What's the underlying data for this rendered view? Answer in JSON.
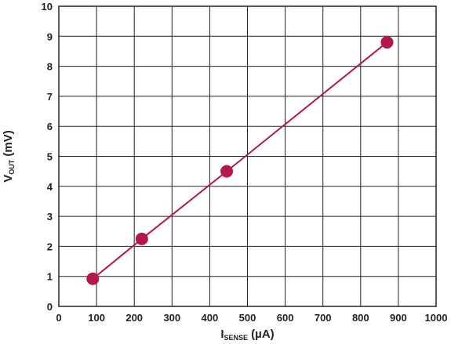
{
  "chart_data": {
    "type": "scatter",
    "x": [
      90,
      220,
      445,
      870
    ],
    "y": [
      0.92,
      2.25,
      4.5,
      8.8
    ],
    "xlim": [
      0,
      1000
    ],
    "ylim": [
      0,
      10
    ],
    "x_ticks": [
      "0",
      "100",
      "200",
      "300",
      "400",
      "500",
      "600",
      "700",
      "800",
      "900",
      "1000"
    ],
    "y_ticks": [
      "0",
      "1",
      "2",
      "3",
      "4",
      "5",
      "6",
      "7",
      "8",
      "9",
      "10"
    ],
    "xlabel": {
      "main": "I",
      "sub": "SENSE",
      "unit": " (µA)"
    },
    "ylabel": {
      "main": "V",
      "sub": "OUT",
      "unit": " (mV)"
    },
    "grid": true,
    "marker": "circle",
    "line": "connected",
    "colors": {
      "series": "#B5174C",
      "grid": "#222222",
      "text": "#222222"
    }
  }
}
